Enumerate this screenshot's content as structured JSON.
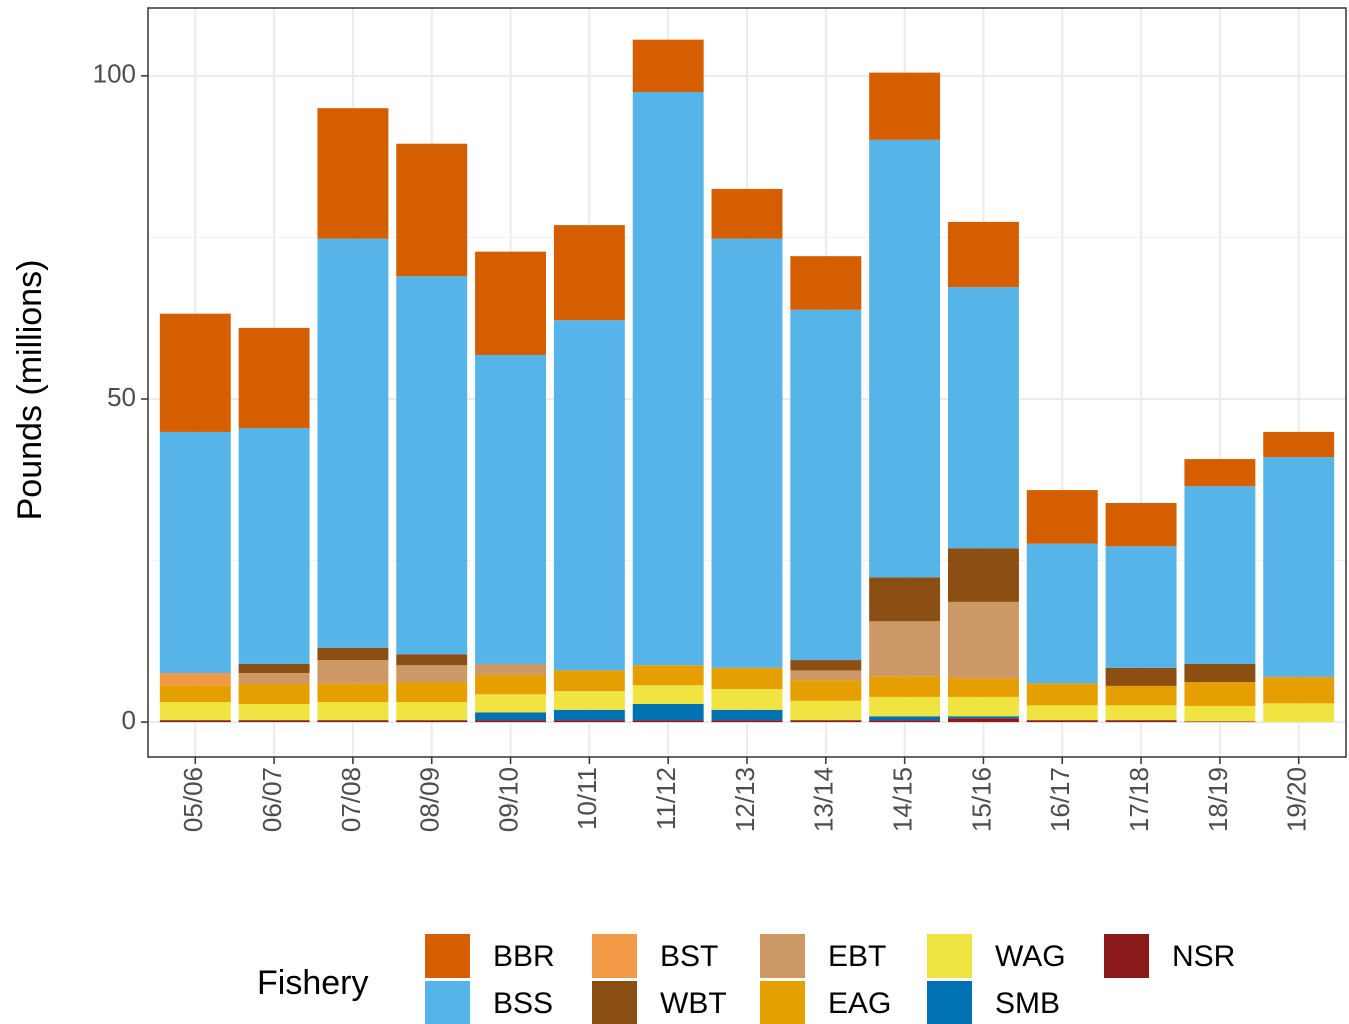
{
  "chart_data": {
    "type": "stacked_bar",
    "ylabel": "Pounds (millions)",
    "categories": [
      "05/06",
      "06/07",
      "07/08",
      "08/09",
      "09/10",
      "10/11",
      "11/12",
      "12/13",
      "13/14",
      "14/15",
      "15/16",
      "16/17",
      "17/18",
      "18/19",
      "19/20"
    ],
    "series": [
      {
        "name": "BBR",
        "color": "#D55E00",
        "values": [
          18.3,
          15.5,
          20.2,
          20.5,
          16.0,
          14.7,
          8.1,
          7.7,
          8.3,
          10.4,
          10.1,
          8.3,
          6.7,
          4.2,
          3.9
        ]
      },
      {
        "name": "BSS",
        "color": "#56B4E9",
        "values": [
          37.3,
          36.5,
          63.3,
          58.5,
          47.8,
          54.2,
          88.7,
          66.4,
          54.2,
          67.7,
          40.4,
          21.6,
          18.8,
          27.5,
          34.0
        ]
      },
      {
        "name": "BST",
        "color": "#F29A48",
        "values": [
          1.9,
          0,
          0,
          0,
          0,
          0,
          0,
          0,
          0,
          0,
          0,
          0,
          0,
          0,
          0
        ]
      },
      {
        "name": "WBT",
        "color": "#8B4F14",
        "values": [
          0,
          1.4,
          1.9,
          1.7,
          0,
          0,
          0,
          0,
          1.6,
          6.8,
          8.3,
          0,
          2.8,
          2.8,
          0
        ]
      },
      {
        "name": "EBT",
        "color": "#CC9966",
        "values": [
          0,
          1.7,
          3.6,
          2.6,
          1.7,
          0,
          0,
          0,
          1.5,
          8.5,
          11.8,
          0,
          0,
          0,
          0
        ]
      },
      {
        "name": "EAG",
        "color": "#E69F00",
        "values": [
          2.6,
          3.1,
          2.9,
          3.1,
          3.0,
          3.2,
          3.1,
          3.3,
          3.2,
          3.2,
          2.9,
          3.4,
          3.0,
          3.7,
          4.1
        ]
      },
      {
        "name": "WAG",
        "color": "#F0E442",
        "values": [
          2.8,
          2.5,
          2.8,
          2.8,
          2.8,
          2.9,
          2.9,
          3.2,
          3.0,
          3.0,
          3.0,
          2.3,
          2.3,
          2.4,
          2.9
        ]
      },
      {
        "name": "SMB",
        "color": "#0072B2",
        "values": [
          0,
          0,
          0,
          0,
          1.2,
          1.6,
          2.5,
          1.6,
          0,
          0.6,
          0.3,
          0,
          0,
          0,
          0
        ]
      },
      {
        "name": "NSR",
        "color": "#8B1A1A",
        "values": [
          0.3,
          0.3,
          0.3,
          0.3,
          0.3,
          0.3,
          0.3,
          0.3,
          0.3,
          0.3,
          0.6,
          0.3,
          0.3,
          0.1,
          0
        ]
      }
    ],
    "ylim": [
      -5.4,
      110.5
    ],
    "yticks": [
      0,
      50,
      100
    ],
    "grid": true,
    "legend": {
      "title": "Fishery",
      "position": "bottom"
    }
  }
}
